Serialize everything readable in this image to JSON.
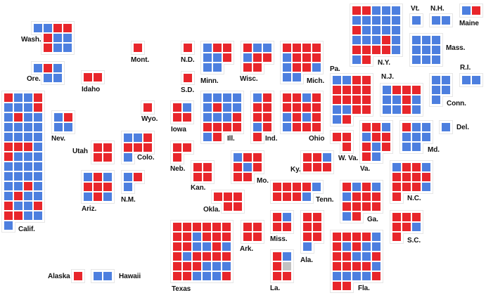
{
  "colors": {
    "R": "#e8262b",
    "D": "#4d7fdf",
    "N": "#c2c2c2"
  },
  "legend_codes": {
    "R": "Republican seat",
    "D": "Democratic seat",
    "N": "Undecided seat"
  },
  "states": [
    {
      "id": "wa",
      "label": "Wash.",
      "rows": [
        "DDRR",
        ".RDD",
        ".RDD"
      ]
    },
    {
      "id": "or",
      "label": "Ore.",
      "rows": [
        "DRD",
        ".DD"
      ]
    },
    {
      "id": "id",
      "label": "Idaho",
      "rows": [
        "RR"
      ]
    },
    {
      "id": "mt",
      "label": "Mont.",
      "rows": [
        "R"
      ]
    },
    {
      "id": "wy",
      "label": "Wyo.",
      "rows": [
        "R"
      ]
    },
    {
      "id": "ca",
      "label": "Calif.",
      "rows": [
        "RDDR",
        "DDDR",
        "DRDD",
        "DDDD",
        "DDDD",
        "RRRD",
        "RDDD",
        "DDDD",
        "DDDD",
        "DDRD",
        "DRDD",
        "RDDR",
        "RRDD",
        "D"
      ]
    },
    {
      "id": "nv",
      "label": "Nev.",
      "rows": [
        "DR",
        "DD"
      ]
    },
    {
      "id": "ut",
      "label": "Utah",
      "rows": [
        "RR",
        "RR"
      ]
    },
    {
      "id": "co",
      "label": "Colo.",
      "rows": [
        "DDR",
        "RRR",
        "D"
      ]
    },
    {
      "id": "az",
      "label": "Ariz.",
      "rows": [
        "DRD",
        "RRR",
        "DRD"
      ]
    },
    {
      "id": "nm",
      "label": "N.M.",
      "rows": [
        "DR",
        "D"
      ]
    },
    {
      "id": "ak",
      "label": "Alaska",
      "rows": [
        "R"
      ]
    },
    {
      "id": "hi",
      "label": "Hawaii",
      "rows": [
        "DD"
      ]
    },
    {
      "id": "nd",
      "label": "N.D.",
      "rows": [
        "R"
      ]
    },
    {
      "id": "sd",
      "label": "S.D.",
      "rows": [
        "R"
      ]
    },
    {
      "id": "mn",
      "label": "Minn.",
      "rows": [
        "DRR",
        "DDR",
        "DD"
      ]
    },
    {
      "id": "wi",
      "label": "Wisc.",
      "rows": [
        "RDD",
        "DRR",
        "RR"
      ]
    },
    {
      "id": "mi",
      "label": "Mich.",
      "rows": [
        "RRRR",
        "DRRR",
        "DRRD",
        "DD"
      ]
    },
    {
      "id": "ia",
      "label": "Iowa",
      "rows": [
        "RD",
        "RR"
      ]
    },
    {
      "id": "il",
      "label": "Ill.",
      "rows": [
        "DDDD",
        "DRDD",
        "DDDR",
        "RRRR",
        "DR"
      ]
    },
    {
      "id": "in",
      "label": "Ind.",
      "rows": [
        "DR",
        "RR",
        "RR",
        "DR",
        "R"
      ]
    },
    {
      "id": "oh",
      "label": "Ohio",
      "rows": [
        "RRDR",
        "RRRR",
        "DRDR",
        "DRRR"
      ]
    },
    {
      "id": "ne",
      "label": "Neb.",
      "rows": [
        "RR",
        "R"
      ]
    },
    {
      "id": "ks",
      "label": "Kan.",
      "rows": [
        "RR",
        "RR"
      ]
    },
    {
      "id": "mo",
      "label": "Mo.",
      "rows": [
        "DRR",
        "RDR",
        "RR"
      ]
    },
    {
      "id": "ky",
      "label": "Ky.",
      "rows": [
        "RRD",
        "RRR"
      ]
    },
    {
      "id": "tn",
      "label": "Tenn.",
      "rows": [
        "RRRRD",
        "RRRD"
      ]
    },
    {
      "id": "ok",
      "label": "Okla.",
      "rows": [
        "RRR",
        ".RR"
      ]
    },
    {
      "id": "tx",
      "label": "Texas",
      "rows": [
        "RRRRRR",
        "RRDRRR",
        "RRDDRD",
        "RDRRRR",
        "RRRDDD",
        "RRDDDR"
      ]
    },
    {
      "id": "ar",
      "label": "Ark.",
      "rows": [
        "RR",
        "RR"
      ]
    },
    {
      "id": "ms",
      "label": "Miss.",
      "rows": [
        "RD",
        "RR"
      ]
    },
    {
      "id": "al",
      "label": "Ala.",
      "rows": [
        "RR",
        "RR",
        "RR",
        "D"
      ]
    },
    {
      "id": "la",
      "label": "La.",
      "rows": [
        "RD",
        "RN",
        "RR"
      ]
    },
    {
      "id": "ny",
      "label": "N.Y.",
      "rows": [
        "RRDDD",
        "DDDDD",
        "RDDDD",
        "DDDRD",
        "RRRRD",
        "DR"
      ]
    },
    {
      "id": "vt",
      "label": "Vt.",
      "rows": [
        "D"
      ]
    },
    {
      "id": "nh",
      "label": "N.H.",
      "rows": [
        "DD"
      ]
    },
    {
      "id": "me",
      "label": "Maine",
      "rows": [
        "DR"
      ]
    },
    {
      "id": "ma",
      "label": "Mass.",
      "rows": [
        "DDD",
        "DDD",
        "DDD"
      ]
    },
    {
      "id": "ri",
      "label": "R.I.",
      "rows": [
        "DD"
      ]
    },
    {
      "id": "ct",
      "label": "Conn.",
      "rows": [
        "DD",
        "DD",
        "D"
      ]
    },
    {
      "id": "pa",
      "label": "Pa.",
      "rows": [
        "DDRR",
        "RRRR",
        "RRRR",
        "DDRR",
        "DR"
      ]
    },
    {
      "id": "nj",
      "label": "N.J.",
      "rows": [
        "DRRR",
        "DDRD",
        "DDRD"
      ]
    },
    {
      "id": "wv",
      "label": "W. Va.",
      "rows": [
        "RR",
        ".R"
      ]
    },
    {
      "id": "va",
      "label": "Va.",
      "rows": [
        "RRD",
        "DRR",
        "RDR",
        "RD"
      ]
    },
    {
      "id": "md",
      "label": "Md.",
      "rows": [
        "RDD",
        "DDD",
        "DD"
      ]
    },
    {
      "id": "de",
      "label": "Del.",
      "rows": [
        "D"
      ]
    },
    {
      "id": "nc",
      "label": "N.C.",
      "rows": [
        "DRRD",
        "RRRR",
        "RRRD",
        "R"
      ]
    },
    {
      "id": "ga",
      "label": "Ga.",
      "rows": [
        "RDRD",
        "DRRR",
        "RRRR",
        "DR"
      ]
    },
    {
      "id": "sc",
      "label": "S.C.",
      "rows": [
        "RRR",
        "RRD",
        "R"
      ]
    },
    {
      "id": "fl",
      "label": "Fla.",
      "rows": [
        "RRRRD",
        "RDRDD",
        "RRDDR",
        "RRRRD",
        "DDDDR",
        "RR"
      ]
    }
  ]
}
